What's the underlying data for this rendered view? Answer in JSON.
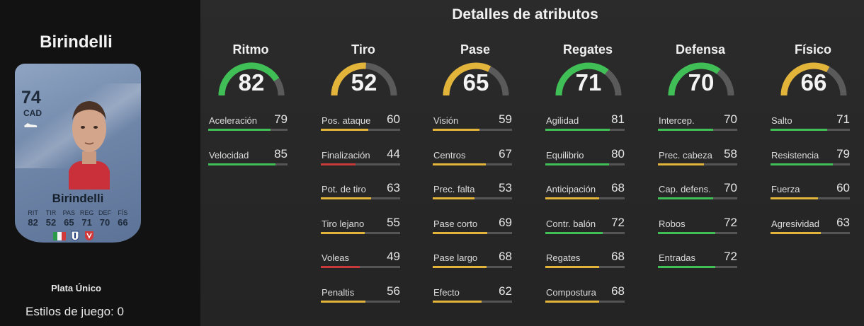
{
  "colors": {
    "high": "#3fbf55",
    "mid": "#e2b43a",
    "low": "#c83a3a",
    "track": "#555555"
  },
  "player": {
    "name": "Birindelli",
    "rating": "74",
    "position": "CAD",
    "card_name": "Birindelli",
    "rarity": "Plata Único",
    "playstyles": "Estilos de juego: 0",
    "card_stats": [
      {
        "label": "RIT",
        "value": "82"
      },
      {
        "label": "TIR",
        "value": "52"
      },
      {
        "label": "PAS",
        "value": "65"
      },
      {
        "label": "REG",
        "value": "71"
      },
      {
        "label": "DEF",
        "value": "70"
      },
      {
        "label": "FÍS",
        "value": "66"
      }
    ]
  },
  "details": {
    "title": "Detalles de atributos",
    "categories": [
      {
        "name": "Ritmo",
        "value": 82,
        "attributes": [
          {
            "label": "Aceleración",
            "value": 79
          },
          {
            "label": "Velocidad",
            "value": 85
          }
        ]
      },
      {
        "name": "Tiro",
        "value": 52,
        "attributes": [
          {
            "label": "Pos. ataque",
            "value": 60
          },
          {
            "label": "Finalización",
            "value": 44
          },
          {
            "label": "Pot. de tiro",
            "value": 63
          },
          {
            "label": "Tiro lejano",
            "value": 55
          },
          {
            "label": "Voleas",
            "value": 49
          },
          {
            "label": "Penaltis",
            "value": 56
          }
        ]
      },
      {
        "name": "Pase",
        "value": 65,
        "attributes": [
          {
            "label": "Visión",
            "value": 59
          },
          {
            "label": "Centros",
            "value": 67
          },
          {
            "label": "Prec. falta",
            "value": 53
          },
          {
            "label": "Pase corto",
            "value": 69
          },
          {
            "label": "Pase largo",
            "value": 68
          },
          {
            "label": "Efecto",
            "value": 62
          }
        ]
      },
      {
        "name": "Regates",
        "value": 71,
        "attributes": [
          {
            "label": "Agilidad",
            "value": 81
          },
          {
            "label": "Equilibrio",
            "value": 80
          },
          {
            "label": "Anticipación",
            "value": 68
          },
          {
            "label": "Contr. balón",
            "value": 72
          },
          {
            "label": "Regates",
            "value": 68
          },
          {
            "label": "Compostura",
            "value": 68
          }
        ]
      },
      {
        "name": "Defensa",
        "value": 70,
        "attributes": [
          {
            "label": "Intercep.",
            "value": 70
          },
          {
            "label": "Prec. cabeza",
            "value": 58
          },
          {
            "label": "Cap. defens.",
            "value": 70
          },
          {
            "label": "Robos",
            "value": 72
          },
          {
            "label": "Entradas",
            "value": 72
          }
        ]
      },
      {
        "name": "Físico",
        "value": 66,
        "attributes": [
          {
            "label": "Salto",
            "value": 71
          },
          {
            "label": "Resistencia",
            "value": 79
          },
          {
            "label": "Fuerza",
            "value": 60
          },
          {
            "label": "Agresividad",
            "value": 63
          }
        ]
      }
    ]
  }
}
